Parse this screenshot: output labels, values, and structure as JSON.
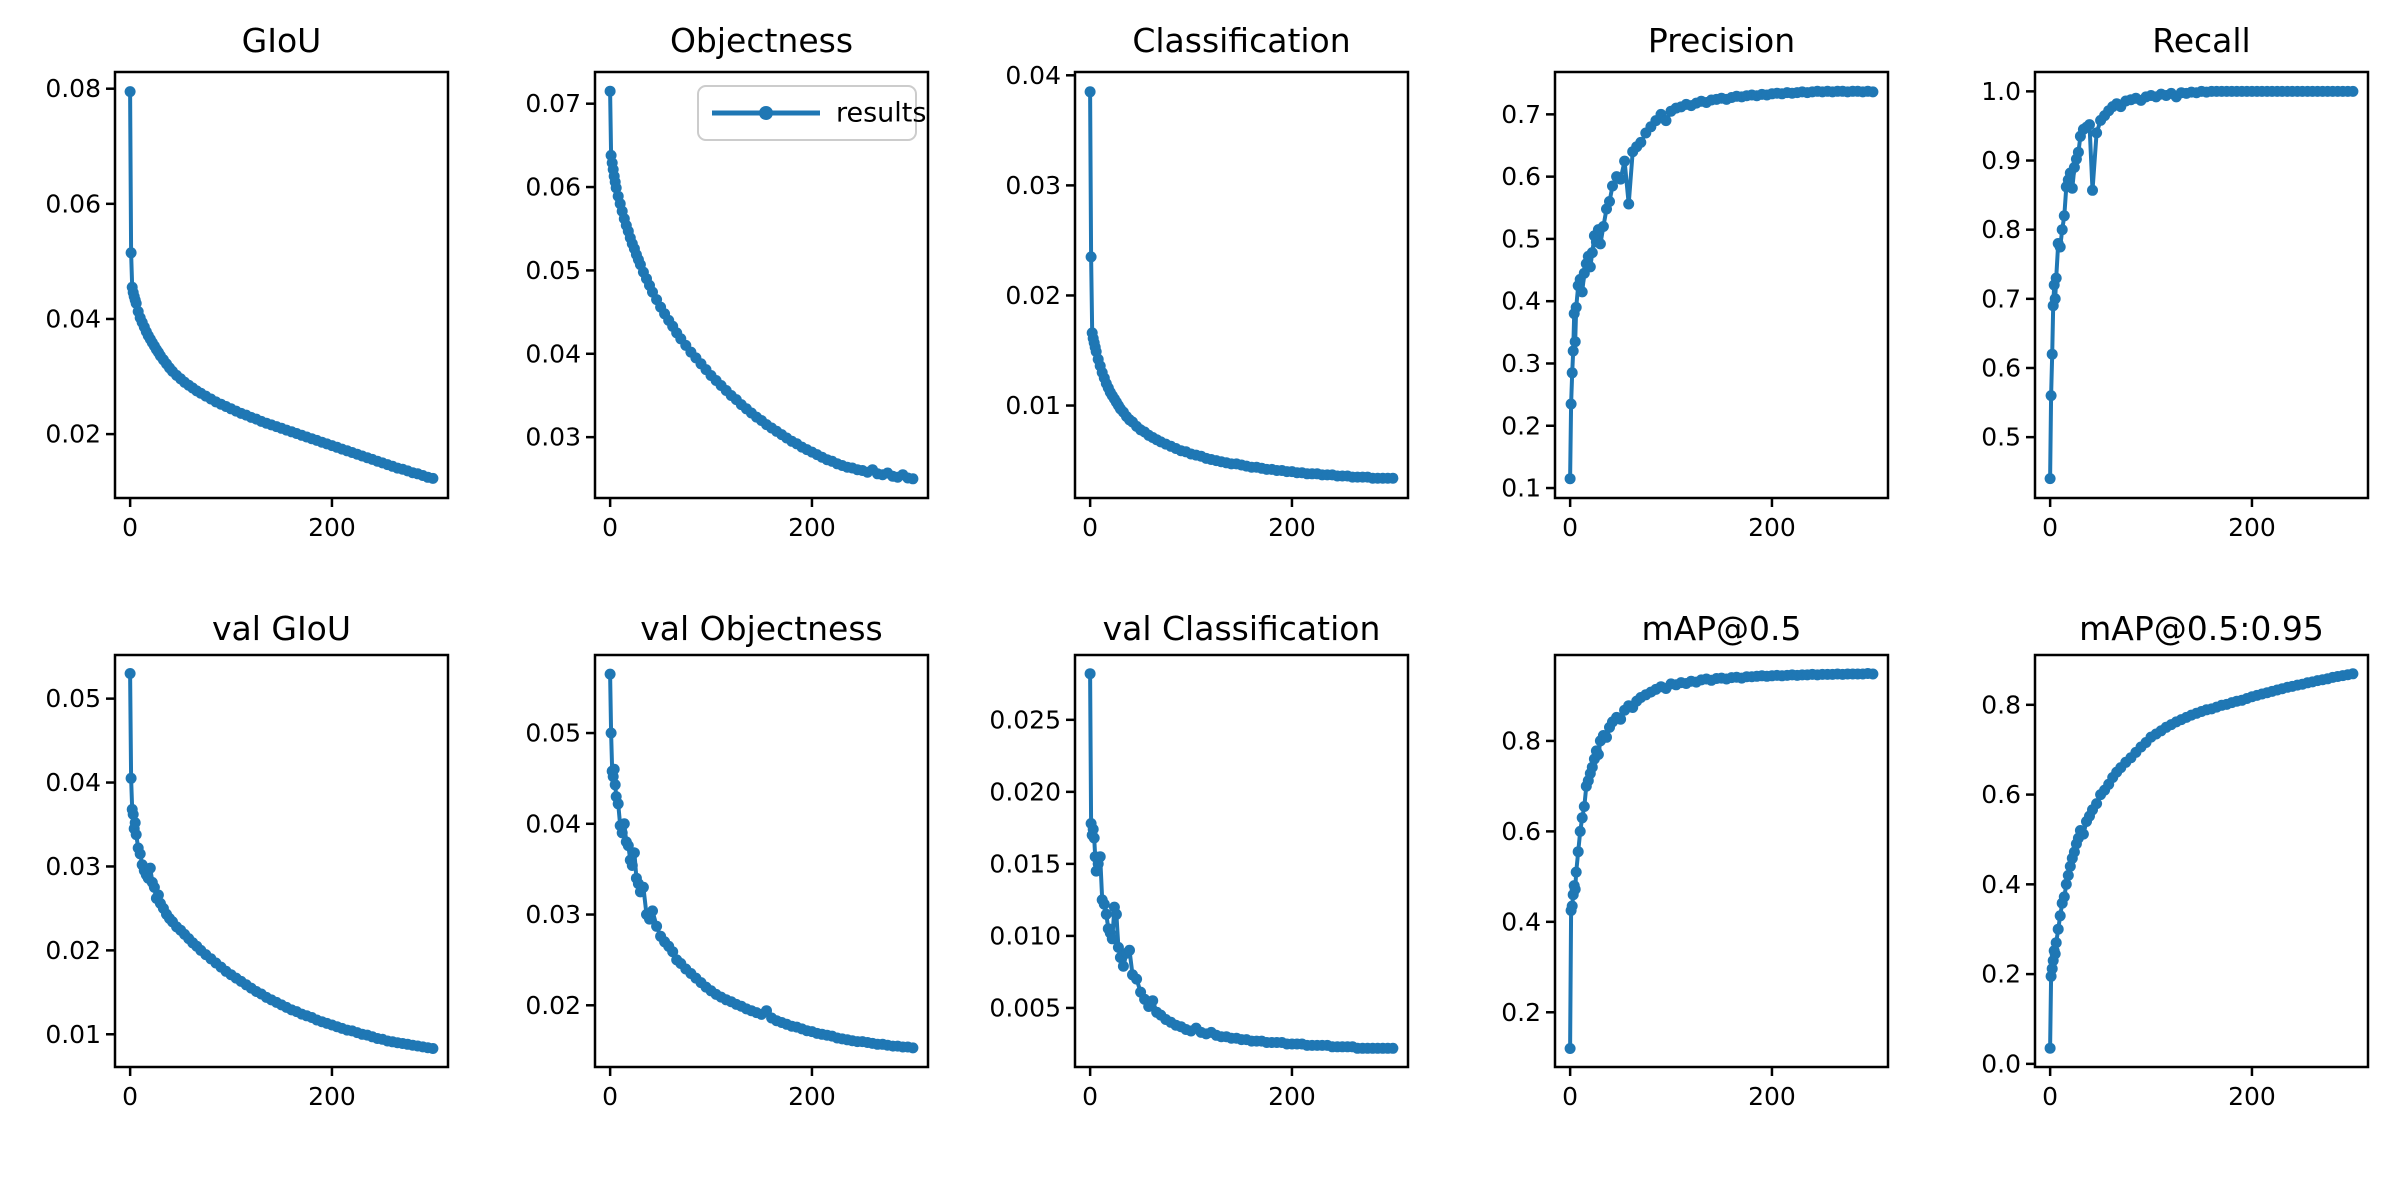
{
  "figure": {
    "background": "#ffffff",
    "series_color": "#1f77b4",
    "text_color": "#000000",
    "legend": {
      "label": "results",
      "border_color": "#cccccc",
      "fill": "#ffffff"
    }
  },
  "chart_data": {
    "type": "line",
    "series_name": "results",
    "marker": "circle",
    "grid": false,
    "x_label": "",
    "y_label": "",
    "x": [
      0,
      1,
      2,
      3,
      4,
      5,
      6,
      8,
      10,
      12,
      14,
      16,
      18,
      20,
      22,
      24,
      26,
      28,
      30,
      33,
      36,
      39,
      42,
      46,
      50,
      54,
      58,
      62,
      66,
      70,
      75,
      80,
      85,
      90,
      95,
      100,
      105,
      110,
      115,
      120,
      125,
      130,
      135,
      140,
      145,
      150,
      155,
      160,
      165,
      170,
      175,
      180,
      185,
      190,
      195,
      200,
      205,
      210,
      215,
      220,
      225,
      230,
      235,
      240,
      245,
      250,
      255,
      260,
      265,
      270,
      275,
      280,
      285,
      290,
      295,
      300
    ],
    "xlim": [
      -15,
      315
    ],
    "xticks": {
      "values": [
        0,
        200
      ],
      "labels": [
        "0",
        "200"
      ]
    },
    "plots": [
      {
        "title": "GIoU",
        "ylim": [
          0.0089,
          0.0829
        ],
        "yticks": {
          "values": [
            0.02,
            0.04,
            0.06,
            0.08
          ],
          "labels": [
            "0.02",
            "0.04",
            "0.06",
            "0.08"
          ]
        },
        "has_legend": false,
        "y": [
          0.0795,
          0.0515,
          0.0455,
          0.0446,
          0.0439,
          0.0433,
          0.0427,
          0.0413,
          0.0402,
          0.0394,
          0.0386,
          0.0378,
          0.0371,
          0.0365,
          0.0359,
          0.0353,
          0.0347,
          0.0342,
          0.0336,
          0.0329,
          0.0322,
          0.0315,
          0.0309,
          0.0302,
          0.0296,
          0.029,
          0.0285,
          0.028,
          0.0275,
          0.0271,
          0.0266,
          0.0261,
          0.0256,
          0.0252,
          0.0248,
          0.0244,
          0.024,
          0.0236,
          0.0233,
          0.0229,
          0.0226,
          0.0222,
          0.0219,
          0.0216,
          0.0213,
          0.021,
          0.0207,
          0.0204,
          0.0201,
          0.0198,
          0.0195,
          0.0192,
          0.0189,
          0.0186,
          0.0183,
          0.018,
          0.0177,
          0.0174,
          0.0171,
          0.0168,
          0.0165,
          0.0162,
          0.0159,
          0.0156,
          0.0153,
          0.015,
          0.0147,
          0.0144,
          0.0141,
          0.0139,
          0.0136,
          0.0133,
          0.0131,
          0.0128,
          0.0125,
          0.0123
        ]
      },
      {
        "title": "Objectness",
        "ylim": [
          0.0227,
          0.0738
        ],
        "yticks": {
          "values": [
            0.03,
            0.04,
            0.05,
            0.06,
            0.07
          ],
          "labels": [
            "0.03",
            "0.04",
            "0.05",
            "0.06",
            "0.07"
          ]
        },
        "has_legend": true,
        "y": [
          0.0715,
          0.0638,
          0.0629,
          0.0621,
          0.0613,
          0.0606,
          0.0599,
          0.0589,
          0.058,
          0.0571,
          0.0562,
          0.0554,
          0.0547,
          0.0539,
          0.0532,
          0.0526,
          0.0519,
          0.0513,
          0.0507,
          0.0498,
          0.049,
          0.0482,
          0.0474,
          0.0465,
          0.0456,
          0.0448,
          0.044,
          0.0433,
          0.0425,
          0.0418,
          0.041,
          0.0402,
          0.0395,
          0.0388,
          0.0381,
          0.0374,
          0.0368,
          0.0362,
          0.0356,
          0.035,
          0.0345,
          0.0339,
          0.0334,
          0.0329,
          0.0324,
          0.032,
          0.0315,
          0.0311,
          0.0307,
          0.0303,
          0.0299,
          0.0295,
          0.0292,
          0.0288,
          0.0285,
          0.0282,
          0.0279,
          0.0276,
          0.0273,
          0.0271,
          0.0268,
          0.0266,
          0.0264,
          0.0263,
          0.0261,
          0.026,
          0.0258,
          0.0261,
          0.0256,
          0.0255,
          0.0257,
          0.0253,
          0.0252,
          0.0255,
          0.0251,
          0.025
        ]
      },
      {
        "title": "Classification",
        "ylim": [
          0.0016,
          0.0403
        ],
        "yticks": {
          "values": [
            0.01,
            0.02,
            0.03,
            0.04
          ],
          "labels": [
            "0.01",
            "0.02",
            "0.03",
            "0.04"
          ]
        },
        "has_legend": false,
        "y": [
          0.0385,
          0.0235,
          0.0166,
          0.0161,
          0.0157,
          0.0153,
          0.0149,
          0.0142,
          0.0136,
          0.013,
          0.0125,
          0.012,
          0.0116,
          0.0112,
          0.0109,
          0.0106,
          0.0103,
          0.01,
          0.0097,
          0.0094,
          0.009,
          0.0087,
          0.0085,
          0.0081,
          0.0078,
          0.0076,
          0.0073,
          0.0071,
          0.0069,
          0.0067,
          0.0065,
          0.0063,
          0.0061,
          0.0059,
          0.0058,
          0.0056,
          0.0055,
          0.0054,
          0.0052,
          0.0051,
          0.005,
          0.0049,
          0.0048,
          0.0047,
          0.0047,
          0.0046,
          0.0045,
          0.0044,
          0.0044,
          0.0043,
          0.0042,
          0.0042,
          0.0041,
          0.0041,
          0.004,
          0.004,
          0.0039,
          0.0039,
          0.0038,
          0.0038,
          0.0038,
          0.0037,
          0.0037,
          0.0037,
          0.0036,
          0.0036,
          0.0036,
          0.0035,
          0.0035,
          0.0035,
          0.0035,
          0.0034,
          0.0034,
          0.0034,
          0.0034,
          0.0034
        ]
      },
      {
        "title": "Precision",
        "ylim": [
          0.084,
          0.768
        ],
        "yticks": {
          "values": [
            0.1,
            0.2,
            0.3,
            0.4,
            0.5,
            0.6,
            0.7
          ],
          "labels": [
            "0.1",
            "0.2",
            "0.3",
            "0.4",
            "0.5",
            "0.6",
            "0.7"
          ]
        },
        "has_legend": false,
        "y": [
          0.115,
          0.235,
          0.285,
          0.32,
          0.38,
          0.335,
          0.39,
          0.425,
          0.435,
          0.415,
          0.445,
          0.46,
          0.472,
          0.455,
          0.478,
          0.505,
          0.495,
          0.515,
          0.492,
          0.52,
          0.548,
          0.56,
          0.585,
          0.6,
          0.596,
          0.625,
          0.556,
          0.64,
          0.648,
          0.655,
          0.67,
          0.68,
          0.69,
          0.7,
          0.69,
          0.705,
          0.71,
          0.712,
          0.716,
          0.714,
          0.718,
          0.721,
          0.719,
          0.723,
          0.724,
          0.726,
          0.724,
          0.727,
          0.729,
          0.728,
          0.73,
          0.731,
          0.73,
          0.732,
          0.731,
          0.733,
          0.734,
          0.733,
          0.735,
          0.734,
          0.735,
          0.736,
          0.735,
          0.736,
          0.737,
          0.736,
          0.737,
          0.736,
          0.737,
          0.737,
          0.736,
          0.737,
          0.737,
          0.736,
          0.737,
          0.736
        ]
      },
      {
        "title": "Recall",
        "ylim": [
          0.412,
          1.028
        ],
        "yticks": {
          "values": [
            0.5,
            0.6,
            0.7,
            0.8,
            0.9,
            1.0
          ],
          "labels": [
            "0.5",
            "0.6",
            "0.7",
            "0.8",
            "0.9",
            "1.0"
          ]
        },
        "has_legend": false,
        "y": [
          0.44,
          0.56,
          0.62,
          0.69,
          0.72,
          0.7,
          0.73,
          0.78,
          0.775,
          0.8,
          0.82,
          0.862,
          0.872,
          0.882,
          0.86,
          0.89,
          0.902,
          0.912,
          0.935,
          0.945,
          0.948,
          0.952,
          0.857,
          0.94,
          0.958,
          0.965,
          0.972,
          0.978,
          0.982,
          0.978,
          0.986,
          0.988,
          0.99,
          0.987,
          0.992,
          0.994,
          0.992,
          0.996,
          0.994,
          0.997,
          0.992,
          0.998,
          0.997,
          0.999,
          0.998,
          1.0,
          0.999,
          1.0,
          1.0,
          1.0,
          1.0,
          1.0,
          1.0,
          1.0,
          1.0,
          1.0,
          1.0,
          1.0,
          1.0,
          1.0,
          1.0,
          1.0,
          1.0,
          1.0,
          1.0,
          1.0,
          1.0,
          1.0,
          1.0,
          1.0,
          1.0,
          1.0,
          1.0,
          1.0,
          1.0,
          1.0
        ]
      },
      {
        "title": "val GIoU",
        "ylim": [
          0.0061,
          0.0552
        ],
        "yticks": {
          "values": [
            0.01,
            0.02,
            0.03,
            0.04,
            0.05
          ],
          "labels": [
            "0.01",
            "0.02",
            "0.03",
            "0.04",
            "0.05"
          ]
        },
        "has_legend": false,
        "y": [
          0.053,
          0.0405,
          0.0368,
          0.0362,
          0.0345,
          0.0352,
          0.0338,
          0.0322,
          0.0315,
          0.0302,
          0.0295,
          0.029,
          0.0286,
          0.0298,
          0.0281,
          0.0275,
          0.0262,
          0.0266,
          0.0256,
          0.025,
          0.0243,
          0.0238,
          0.0234,
          0.0228,
          0.0224,
          0.0219,
          0.0214,
          0.0209,
          0.0205,
          0.02,
          0.0195,
          0.019,
          0.0185,
          0.018,
          0.0175,
          0.0171,
          0.0167,
          0.0163,
          0.0159,
          0.0155,
          0.0151,
          0.0148,
          0.0144,
          0.0141,
          0.0138,
          0.0135,
          0.0132,
          0.0129,
          0.0127,
          0.0124,
          0.0122,
          0.012,
          0.0117,
          0.0115,
          0.0113,
          0.0111,
          0.0109,
          0.0107,
          0.0105,
          0.0104,
          0.0102,
          0.01,
          0.0099,
          0.0097,
          0.0095,
          0.0094,
          0.0092,
          0.0091,
          0.009,
          0.0089,
          0.0088,
          0.0087,
          0.0086,
          0.0085,
          0.0084,
          0.0083
        ]
      },
      {
        "title": "val Objectness",
        "ylim": [
          0.0132,
          0.0586
        ],
        "yticks": {
          "values": [
            0.02,
            0.03,
            0.04,
            0.05
          ],
          "labels": [
            "0.02",
            "0.03",
            "0.04",
            "0.05"
          ]
        },
        "has_legend": false,
        "y": [
          0.0565,
          0.05,
          0.0458,
          0.0452,
          0.046,
          0.0443,
          0.043,
          0.0422,
          0.0398,
          0.039,
          0.04,
          0.038,
          0.0376,
          0.036,
          0.0354,
          0.0368,
          0.034,
          0.0334,
          0.0325,
          0.033,
          0.03,
          0.0295,
          0.0304,
          0.0287,
          0.0276,
          0.027,
          0.0265,
          0.0259,
          0.025,
          0.0246,
          0.024,
          0.0235,
          0.023,
          0.0225,
          0.022,
          0.0216,
          0.0212,
          0.0209,
          0.0206,
          0.0204,
          0.0201,
          0.0199,
          0.0196,
          0.0194,
          0.0192,
          0.019,
          0.0194,
          0.0186,
          0.0183,
          0.0181,
          0.0179,
          0.0177,
          0.0176,
          0.0174,
          0.0172,
          0.0171,
          0.0169,
          0.0168,
          0.0167,
          0.0166,
          0.0164,
          0.0163,
          0.0162,
          0.0161,
          0.016,
          0.016,
          0.0159,
          0.0158,
          0.0157,
          0.0157,
          0.0156,
          0.0155,
          0.0155,
          0.0154,
          0.0154,
          0.0153
        ]
      },
      {
        "title": "val Classification",
        "ylim": [
          0.0009,
          0.0295
        ],
        "yticks": {
          "values": [
            0.005,
            0.01,
            0.015,
            0.02,
            0.025
          ],
          "labels": [
            "0.005",
            "0.010",
            "0.015",
            "0.020",
            "0.025"
          ]
        },
        "has_legend": false,
        "y": [
          0.0282,
          0.0178,
          0.017,
          0.0174,
          0.0168,
          0.0155,
          0.0145,
          0.015,
          0.0155,
          0.0125,
          0.0122,
          0.0115,
          0.0105,
          0.0102,
          0.0098,
          0.012,
          0.0115,
          0.0092,
          0.0085,
          0.0079,
          0.0088,
          0.009,
          0.0073,
          0.007,
          0.0061,
          0.0056,
          0.0051,
          0.0055,
          0.0047,
          0.0045,
          0.0042,
          0.004,
          0.0038,
          0.0037,
          0.0035,
          0.0034,
          0.0036,
          0.0033,
          0.0032,
          0.0033,
          0.0031,
          0.003,
          0.003,
          0.0029,
          0.0029,
          0.0028,
          0.0028,
          0.0027,
          0.0027,
          0.0027,
          0.0026,
          0.0026,
          0.0026,
          0.0026,
          0.0025,
          0.0025,
          0.0025,
          0.0025,
          0.0024,
          0.0024,
          0.0024,
          0.0024,
          0.0024,
          0.0023,
          0.0023,
          0.0023,
          0.0023,
          0.0023,
          0.0022,
          0.0022,
          0.0022,
          0.0022,
          0.0022,
          0.0022,
          0.0022,
          0.0022
        ]
      },
      {
        "title": "mAP@0.5",
        "ylim": [
          0.079,
          0.99
        ],
        "yticks": {
          "values": [
            0.2,
            0.4,
            0.6,
            0.8
          ],
          "labels": [
            "0.2",
            "0.4",
            "0.6",
            "0.8"
          ]
        },
        "has_legend": false,
        "y": [
          0.12,
          0.425,
          0.435,
          0.46,
          0.48,
          0.472,
          0.51,
          0.555,
          0.6,
          0.63,
          0.655,
          0.7,
          0.712,
          0.728,
          0.742,
          0.76,
          0.778,
          0.77,
          0.8,
          0.812,
          0.808,
          0.83,
          0.842,
          0.852,
          0.848,
          0.868,
          0.878,
          0.874,
          0.888,
          0.896,
          0.902,
          0.908,
          0.914,
          0.92,
          0.916,
          0.926,
          0.924,
          0.929,
          0.927,
          0.932,
          0.93,
          0.935,
          0.937,
          0.934,
          0.938,
          0.939,
          0.937,
          0.94,
          0.941,
          0.939,
          0.942,
          0.942,
          0.943,
          0.944,
          0.943,
          0.944,
          0.945,
          0.944,
          0.945,
          0.946,
          0.945,
          0.946,
          0.946,
          0.947,
          0.946,
          0.947,
          0.947,
          0.947,
          0.948,
          0.947,
          0.948,
          0.948,
          0.948,
          0.948,
          0.949,
          0.948
        ]
      },
      {
        "title": "mAP@0.5:0.95",
        "ylim": [
          -0.007,
          0.911
        ],
        "yticks": {
          "values": [
            0.0,
            0.2,
            0.4,
            0.6,
            0.8
          ],
          "labels": [
            "0.0",
            "0.2",
            "0.4",
            "0.6",
            "0.8"
          ]
        },
        "has_legend": false,
        "y": [
          0.035,
          0.195,
          0.212,
          0.23,
          0.252,
          0.245,
          0.27,
          0.3,
          0.33,
          0.358,
          0.372,
          0.4,
          0.42,
          0.44,
          0.458,
          0.472,
          0.49,
          0.503,
          0.52,
          0.512,
          0.54,
          0.552,
          0.566,
          0.58,
          0.6,
          0.61,
          0.623,
          0.638,
          0.65,
          0.66,
          0.672,
          0.682,
          0.694,
          0.706,
          0.716,
          0.728,
          0.735,
          0.742,
          0.75,
          0.756,
          0.762,
          0.767,
          0.772,
          0.777,
          0.781,
          0.785,
          0.789,
          0.791,
          0.795,
          0.799,
          0.801,
          0.805,
          0.808,
          0.81,
          0.814,
          0.818,
          0.821,
          0.824,
          0.827,
          0.83,
          0.833,
          0.836,
          0.839,
          0.841,
          0.844,
          0.846,
          0.849,
          0.851,
          0.854,
          0.856,
          0.858,
          0.861,
          0.863,
          0.865,
          0.867,
          0.869
        ]
      }
    ]
  }
}
